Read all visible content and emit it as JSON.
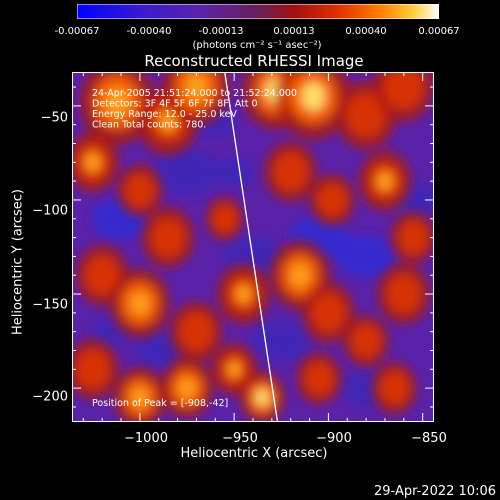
{
  "colorbar": {
    "ticks": [
      "-0.00067",
      "-0.00040",
      "-0.00013",
      "0.00013",
      "0.00040",
      "0.00067"
    ],
    "unit": "(photons cm⁻² s⁻¹ asec⁻²)"
  },
  "footer": {
    "timestamp": "29-Apr-2022 10:06"
  },
  "chart_data": {
    "type": "heatmap",
    "title": "Reconstructed RHESSI Image",
    "xlabel": "Heliocentric X (arcsec)",
    "ylabel": "Heliocentric Y (arcsec)",
    "xlim": [
      -1036,
      -844
    ],
    "ylim": [
      -218,
      -32
    ],
    "x_ticks": [
      -1000,
      -950,
      -900,
      -850
    ],
    "y_ticks": [
      -50,
      -100,
      -150,
      -200
    ],
    "x_tick_labels": [
      "−1000",
      "−950",
      "−900",
      "−850"
    ],
    "y_tick_labels": [
      "−50",
      "−100",
      "−150",
      "−200"
    ],
    "colorscale_range": [
      -0.00067,
      0.00067
    ],
    "limb_line": [
      [
        -955,
        -32
      ],
      [
        -927,
        -218
      ]
    ],
    "annotations": [
      "24-Apr-2005 21:51:24.000 to 21:52:24.000",
      "Detectors: 3F 4F 5F 6F 7F 8F, Att 0",
      "Energy Range: 12.0 - 25.0 keV",
      "Clean     Total counts: 780.",
      "Position of Peak = [-908,-42]"
    ],
    "peak_position": [
      -908,
      -42
    ],
    "sources": [
      [
        -1012,
        -48,
        20,
        0.9
      ],
      [
        -985,
        -58,
        16,
        0.8
      ],
      [
        -970,
        -40,
        18,
        0.85
      ],
      [
        -928,
        -42,
        18,
        0.95
      ],
      [
        -908,
        -45,
        20,
        1.0
      ],
      [
        -880,
        -55,
        16,
        0.7
      ],
      [
        -860,
        -40,
        16,
        0.75
      ],
      [
        -1025,
        -80,
        14,
        0.8
      ],
      [
        -1000,
        -95,
        12,
        0.6
      ],
      [
        -985,
        -120,
        14,
        0.7
      ],
      [
        -955,
        -110,
        10,
        0.5
      ],
      [
        -920,
        -85,
        14,
        0.7
      ],
      [
        -898,
        -100,
        12,
        0.6
      ],
      [
        -870,
        -90,
        14,
        0.8
      ],
      [
        -1020,
        -140,
        14,
        0.6
      ],
      [
        -1000,
        -155,
        16,
        0.85
      ],
      [
        -970,
        -170,
        14,
        0.7
      ],
      [
        -945,
        -150,
        14,
        0.8
      ],
      [
        -915,
        -140,
        16,
        0.9
      ],
      [
        -900,
        -160,
        14,
        0.75
      ],
      [
        -880,
        -175,
        12,
        0.5
      ],
      [
        -860,
        -150,
        14,
        0.65
      ],
      [
        -1025,
        -190,
        14,
        0.7
      ],
      [
        -1000,
        -205,
        14,
        0.85
      ],
      [
        -975,
        -200,
        14,
        0.9
      ],
      [
        -950,
        -190,
        12,
        0.8
      ],
      [
        -935,
        -205,
        12,
        0.95
      ],
      [
        -905,
        -195,
        12,
        0.6
      ],
      [
        -865,
        -200,
        12,
        0.55
      ],
      [
        -855,
        -120,
        12,
        0.6
      ]
    ],
    "dips": [
      [
        -1010,
        -110,
        14,
        0.9
      ],
      [
        -975,
        -85,
        16,
        0.8
      ],
      [
        -940,
        -130,
        14,
        0.7
      ],
      [
        -905,
        -120,
        14,
        0.9
      ],
      [
        -880,
        -130,
        14,
        1.0
      ],
      [
        -855,
        -100,
        12,
        0.8
      ],
      [
        -925,
        -175,
        14,
        0.8
      ],
      [
        -880,
        -200,
        12,
        0.8
      ],
      [
        -990,
        -180,
        12,
        0.7
      ],
      [
        -960,
        -60,
        10,
        0.6
      ],
      [
        -1015,
        -170,
        10,
        0.6
      ],
      [
        -950,
        -85,
        10,
        0.7
      ]
    ]
  }
}
